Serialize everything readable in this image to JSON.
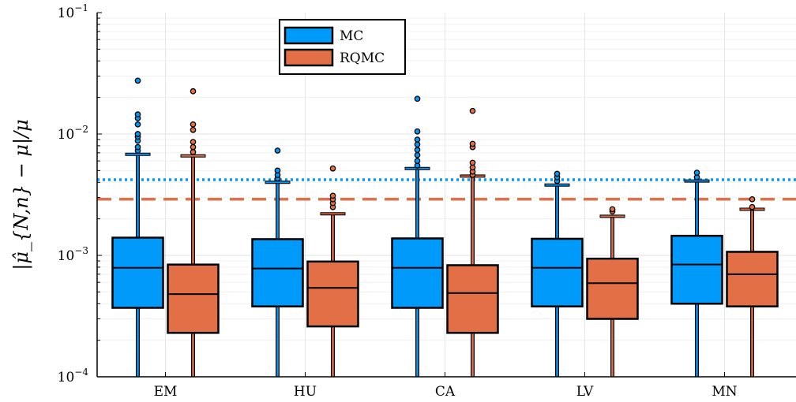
{
  "chart_data": {
    "type": "box",
    "ylabel": "|μ̂_{N,n} − μ|/μ",
    "yscale": "log",
    "ylim": [
      0.0001,
      0.1
    ],
    "y_ticks": [
      {
        "value": 0.0001,
        "base": "10",
        "exp": "−4"
      },
      {
        "value": 0.001,
        "base": "10",
        "exp": "−3"
      },
      {
        "value": 0.01,
        "base": "10",
        "exp": "−2"
      },
      {
        "value": 0.1,
        "base": "10",
        "exp": "−1"
      }
    ],
    "categories": [
      "EM",
      "HU",
      "CA",
      "LV",
      "MN"
    ],
    "grid": true,
    "legend_position": "top-center",
    "series": [
      {
        "name": "MC",
        "color": "#009AFA",
        "boxes": [
          {
            "q1": 0.00037,
            "median": 0.00079,
            "q3": 0.0014,
            "whisker_low": 0.0001,
            "whisker_high": 0.0068,
            "outliers": [
              0.0073,
              0.0078,
              0.0088,
              0.0095,
              0.01,
              0.012,
              0.0135,
              0.0145,
              0.0275
            ]
          },
          {
            "q1": 0.00038,
            "median": 0.00078,
            "q3": 0.00136,
            "whisker_low": 0.0001,
            "whisker_high": 0.004,
            "outliers": [
              0.0043,
              0.0046,
              0.005,
              0.0073
            ]
          },
          {
            "q1": 0.00037,
            "median": 0.00079,
            "q3": 0.00138,
            "whisker_low": 0.0001,
            "whisker_high": 0.0052,
            "outliers": [
              0.0055,
              0.006,
              0.0067,
              0.0074,
              0.0082,
              0.009,
              0.0105,
              0.0195
            ]
          },
          {
            "q1": 0.00038,
            "median": 0.00079,
            "q3": 0.00137,
            "whisker_low": 0.0001,
            "whisker_high": 0.0038,
            "outliers": [
              0.0041,
              0.0044,
              0.0047
            ]
          },
          {
            "q1": 0.0004,
            "median": 0.00084,
            "q3": 0.00145,
            "whisker_low": 0.0001,
            "whisker_high": 0.0041,
            "outliers": [
              0.0044,
              0.0048
            ]
          }
        ]
      },
      {
        "name": "RQMC",
        "color": "#E26F46",
        "boxes": [
          {
            "q1": 0.00023,
            "median": 0.00048,
            "q3": 0.00084,
            "whisker_low": 0.0001,
            "whisker_high": 0.0066,
            "outliers": [
              0.0071,
              0.0078,
              0.0086,
              0.0108,
              0.012,
              0.0225
            ]
          },
          {
            "q1": 0.00026,
            "median": 0.00054,
            "q3": 0.00089,
            "whisker_low": 0.0001,
            "whisker_high": 0.0022,
            "outliers": [
              0.0025,
              0.0027,
              0.0029,
              0.0031,
              0.0052
            ]
          },
          {
            "q1": 0.00023,
            "median": 0.00049,
            "q3": 0.00083,
            "whisker_low": 0.0001,
            "whisker_high": 0.0045,
            "outliers": [
              0.0046,
              0.0049,
              0.0053,
              0.0058,
              0.0078,
              0.0083,
              0.0155
            ]
          },
          {
            "q1": 0.0003,
            "median": 0.00059,
            "q3": 0.00094,
            "whisker_low": 0.0001,
            "whisker_high": 0.0021,
            "outliers": [
              0.0023,
              0.0024
            ]
          },
          {
            "q1": 0.00038,
            "median": 0.0007,
            "q3": 0.00107,
            "whisker_low": 0.0001,
            "whisker_high": 0.0024,
            "outliers": [
              0.0025,
              0.0029
            ]
          }
        ]
      }
    ],
    "reference_lines": [
      {
        "series": "MC",
        "value": 0.0042,
        "style": "dotted",
        "color": "#009AFA"
      },
      {
        "series": "RQMC",
        "value": 0.0029,
        "style": "dashed",
        "color": "#E26F46"
      }
    ]
  }
}
